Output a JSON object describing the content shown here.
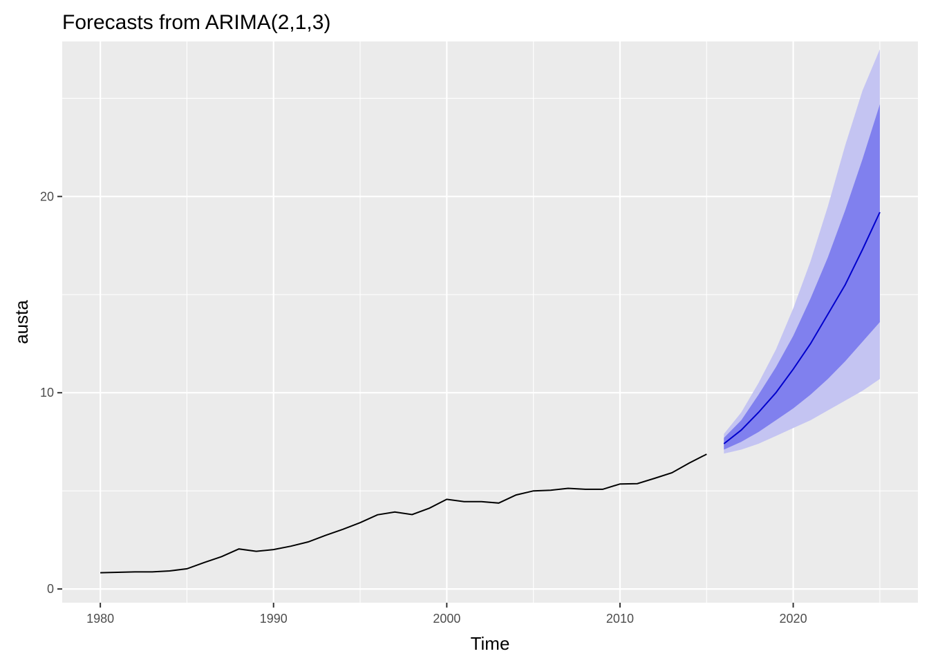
{
  "chart_data": {
    "type": "line",
    "title": "Forecasts from ARIMA(2,1,3)",
    "xlabel": "Time",
    "ylabel": "austa",
    "xlim": [
      1977.8,
      2027.2
    ],
    "ylim": [
      -0.7,
      27.9
    ],
    "x_ticks": [
      1980,
      1990,
      2000,
      2010,
      2020
    ],
    "x_tick_labels": [
      "1980",
      "1990",
      "2000",
      "2010",
      "2020"
    ],
    "y_ticks": [
      0,
      10,
      20
    ],
    "y_tick_labels": [
      "0",
      "10",
      "20"
    ],
    "grid": true,
    "legend": "none",
    "background": "#ebebeb",
    "colors": {
      "history": "#000000",
      "forecast": "#0000cc",
      "pi80": "#8080ee",
      "pi95": "#c4c4f2",
      "grid": "#ffffff"
    },
    "history": {
      "x": [
        1980,
        1981,
        1982,
        1983,
        1984,
        1985,
        1986,
        1987,
        1988,
        1989,
        1990,
        1991,
        1992,
        1993,
        1994,
        1995,
        1996,
        1997,
        1998,
        1999,
        2000,
        2001,
        2002,
        2003,
        2004,
        2005,
        2006,
        2007,
        2008,
        2009,
        2010,
        2011,
        2012,
        2013,
        2014,
        2015
      ],
      "y": [
        0.83,
        0.85,
        0.87,
        0.87,
        0.92,
        1.03,
        1.35,
        1.65,
        2.04,
        1.92,
        2.01,
        2.18,
        2.4,
        2.73,
        3.04,
        3.38,
        3.78,
        3.92,
        3.79,
        4.12,
        4.57,
        4.45,
        4.45,
        4.38,
        4.79,
        5.0,
        5.03,
        5.13,
        5.08,
        5.08,
        5.35,
        5.37,
        5.64,
        5.92,
        6.42,
        6.87
      ]
    },
    "forecast": {
      "x": [
        2016,
        2017,
        2018,
        2019,
        2020,
        2021,
        2022,
        2023,
        2024,
        2025
      ],
      "mean": [
        7.4,
        8.1,
        9.0,
        10.0,
        11.2,
        12.5,
        14.0,
        15.5,
        17.3,
        19.2
      ],
      "lo80": [
        7.1,
        7.5,
        8.0,
        8.6,
        9.2,
        9.9,
        10.7,
        11.6,
        12.6,
        13.6
      ],
      "hi80": [
        7.7,
        8.6,
        9.9,
        11.3,
        12.9,
        14.8,
        16.9,
        19.3,
        21.9,
        24.7
      ],
      "lo95": [
        6.9,
        7.1,
        7.4,
        7.8,
        8.2,
        8.6,
        9.1,
        9.6,
        10.1,
        10.7
      ],
      "hi95": [
        7.9,
        9.0,
        10.5,
        12.2,
        14.3,
        16.7,
        19.5,
        22.6,
        25.4,
        27.5
      ]
    }
  }
}
